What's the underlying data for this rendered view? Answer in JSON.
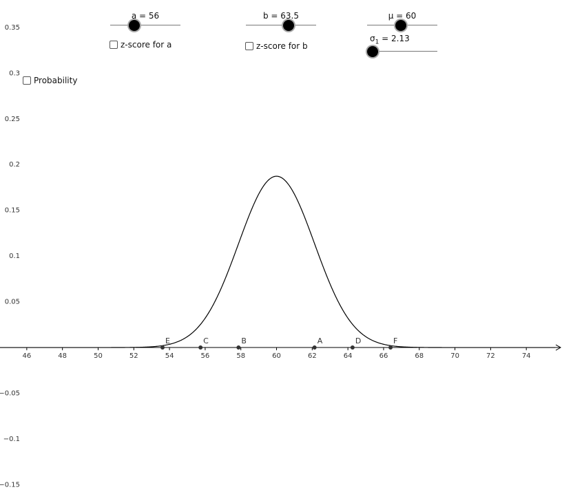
{
  "sliders": {
    "a": {
      "label": "a = 56",
      "min": 46,
      "max": 75,
      "value": 56
    },
    "b": {
      "label": "b = 63.5",
      "min": 46,
      "max": 75,
      "value": 63.5
    },
    "mu": {
      "label": "μ = 60",
      "min": 46,
      "max": 75,
      "value": 60
    },
    "sigma": {
      "label_prefix": "σ",
      "label_sub": "1",
      "label_suffix": " = 2.13",
      "min": 1,
      "max": 15,
      "value": 2.13
    }
  },
  "checkboxes": {
    "z_score_a": {
      "label": "z-score for a",
      "checked": false
    },
    "z_score_b": {
      "label": "z-score for b",
      "checked": false
    },
    "probability": {
      "label": "Probability",
      "checked": false
    }
  },
  "chart_data": {
    "type": "line",
    "title": "",
    "xlabel": "",
    "ylabel": "",
    "xlim": [
      44.5,
      76
    ],
    "ylim": [
      -0.17,
      0.38
    ],
    "x_ticks": [
      46,
      48,
      50,
      52,
      54,
      56,
      58,
      60,
      62,
      64,
      66,
      68,
      70,
      72,
      74
    ],
    "y_ticks": [
      -0.15,
      -0.1,
      -0.05,
      0.05,
      0.1,
      0.15,
      0.2,
      0.25,
      0.3,
      0.35
    ],
    "y_tick_labels": [
      "−0.15",
      "−0.1",
      "−0.05",
      "0.05",
      "0.1",
      "0.15",
      "0.2",
      "0.25",
      "0.3",
      "0.35"
    ],
    "grid": false,
    "curve": {
      "kind": "normal-density",
      "mean": 60,
      "sd": 2.13,
      "color": "#000000"
    },
    "points": [
      {
        "name": "E",
        "x": 53.61
      },
      {
        "name": "C",
        "x": 55.74
      },
      {
        "name": "B",
        "x": 57.87
      },
      {
        "name": "A",
        "x": 62.13
      },
      {
        "name": "D",
        "x": 64.26
      },
      {
        "name": "F",
        "x": 66.39
      }
    ],
    "point_color": "#333333"
  }
}
